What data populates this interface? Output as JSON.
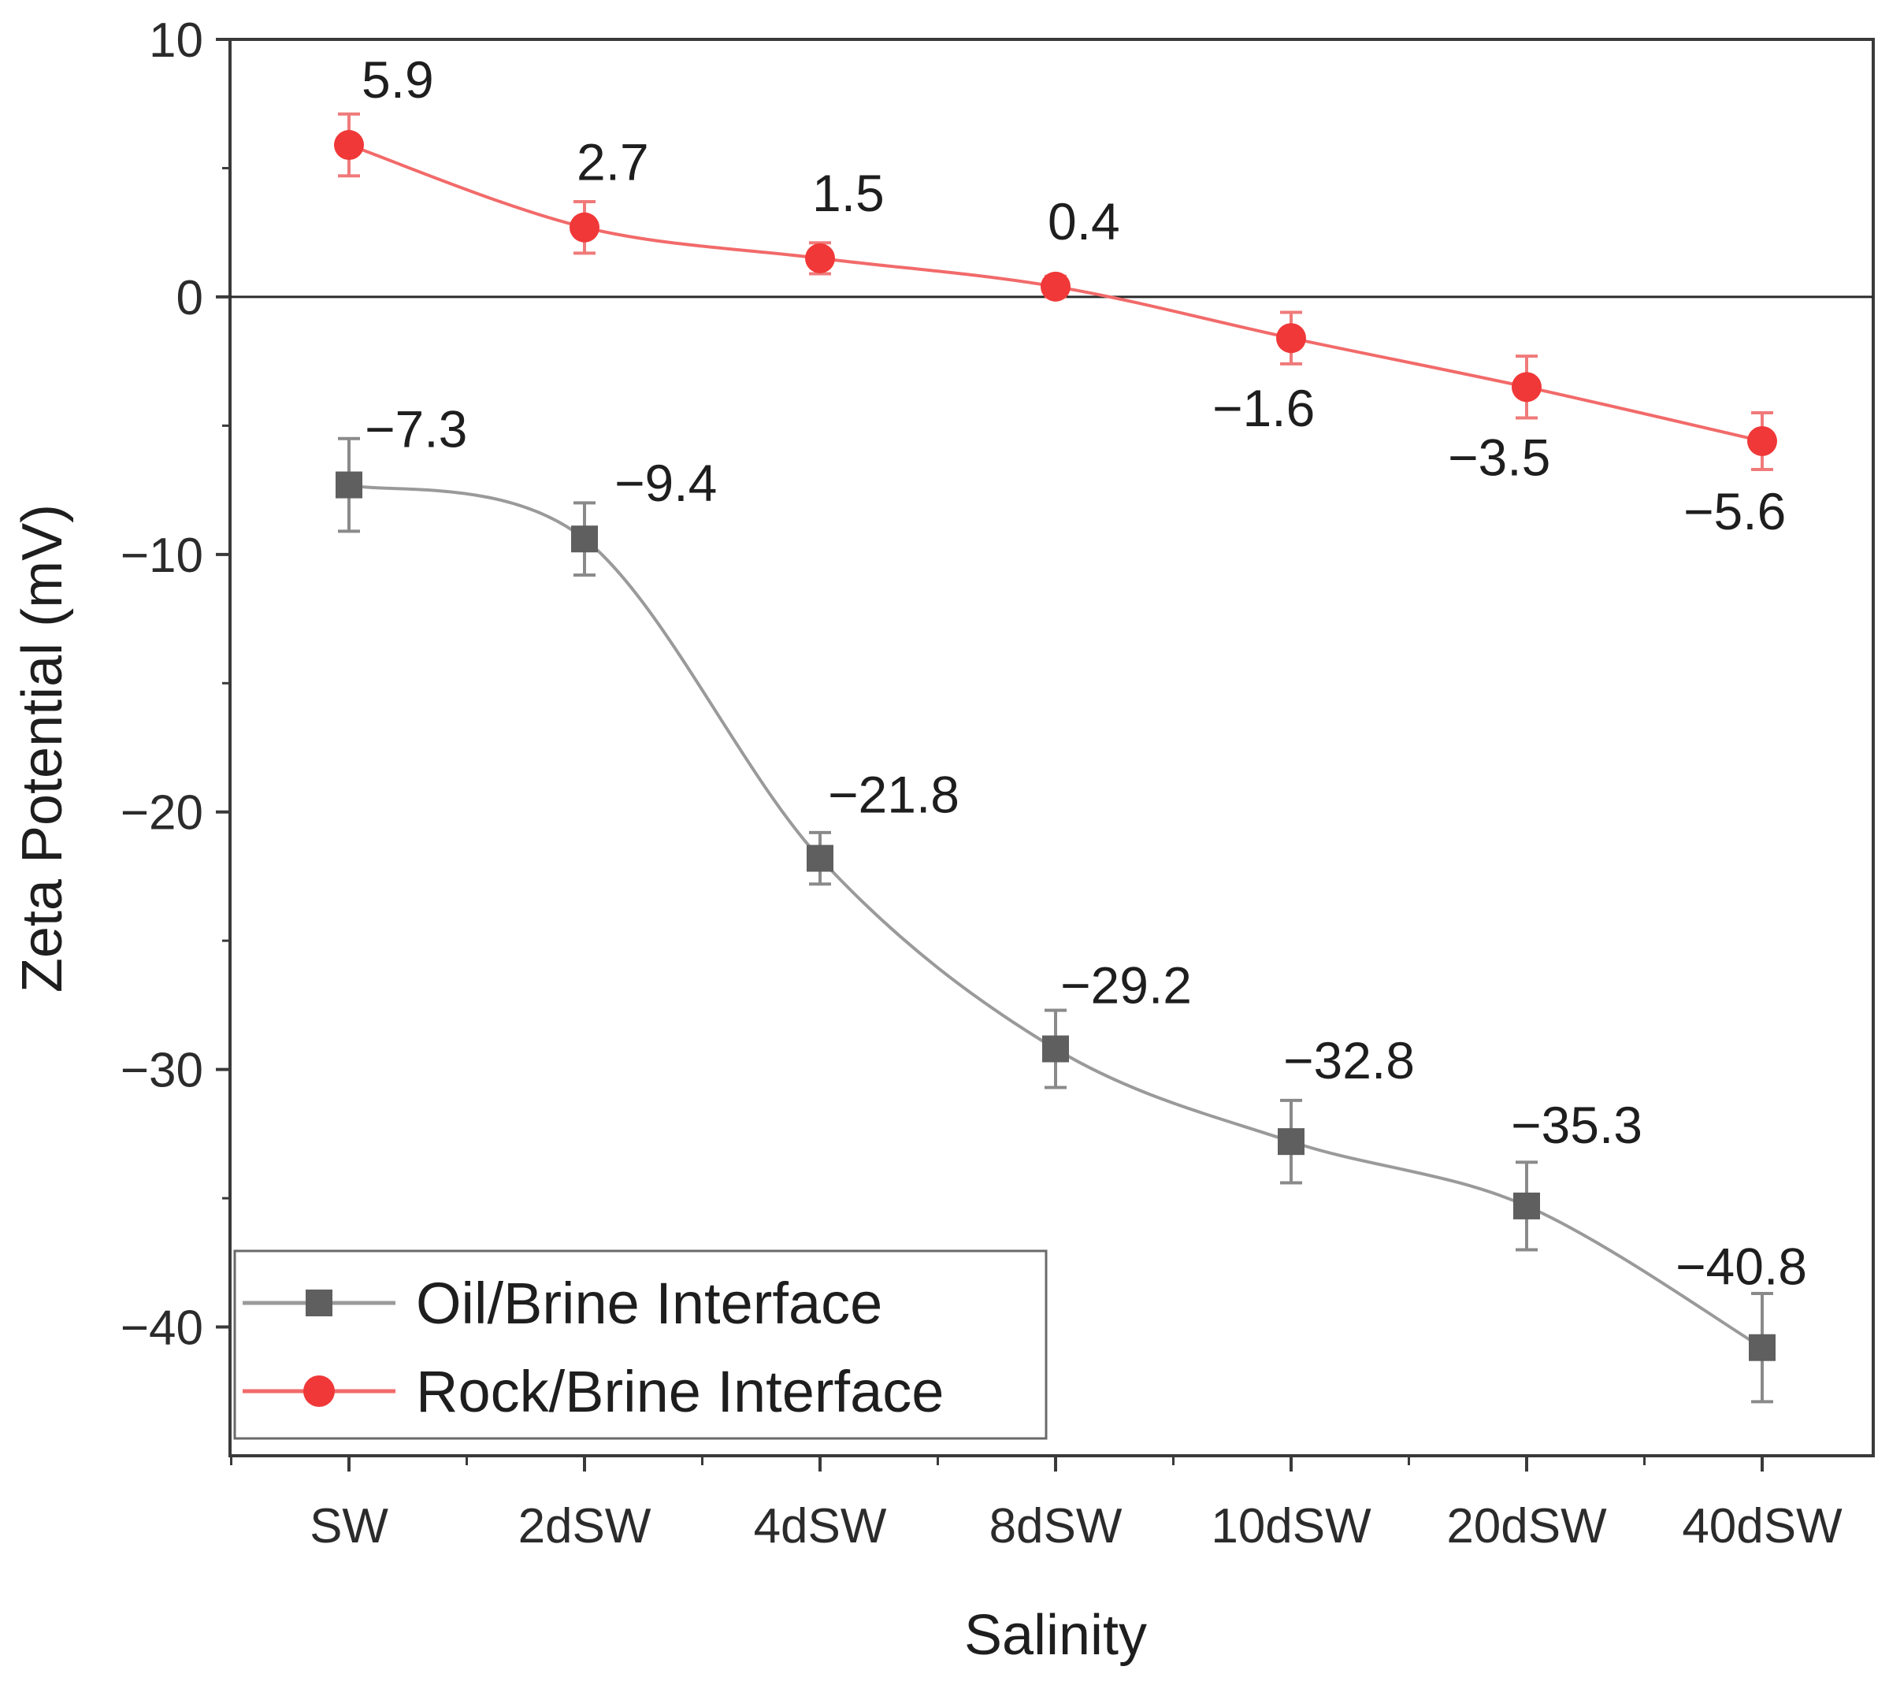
{
  "chart_data": {
    "type": "line",
    "title": "",
    "xlabel": "Salinity",
    "ylabel": "Zeta Potential (mV)",
    "categories": [
      "SW",
      "2dSW",
      "4dSW",
      "8dSW",
      "10dSW",
      "20dSW",
      "40dSW"
    ],
    "ylim": [
      -45,
      10
    ],
    "yticks": [
      10,
      0,
      -10,
      -20,
      -30,
      -40
    ],
    "ytick_labels": [
      "10",
      "0",
      "−10",
      "−20",
      "−30",
      "−40"
    ],
    "zero_line": true,
    "grid": false,
    "legend_position": "bottom-left",
    "series": [
      {
        "name": "Oil/Brine Interface",
        "marker": "square",
        "color": "#5f5f5f",
        "line_color": "#9a9a9a",
        "values": [
          -7.3,
          -9.4,
          -21.8,
          -29.2,
          -32.8,
          -35.3,
          -40.8
        ],
        "errors": [
          1.8,
          1.4,
          1.0,
          1.5,
          1.6,
          1.7,
          2.1
        ],
        "labels": [
          "−7.3",
          "−9.4",
          "−21.8",
          "−29.2",
          "−32.8",
          "−35.3",
          "−40.8"
        ]
      },
      {
        "name": "Rock/Brine Interface",
        "marker": "circle",
        "color": "#f03838",
        "line_color": "#f26a6a",
        "values": [
          5.9,
          2.7,
          1.5,
          0.4,
          -1.6,
          -3.5,
          -5.6
        ],
        "errors": [
          1.2,
          1.0,
          0.6,
          0.4,
          1.0,
          1.2,
          1.1
        ],
        "labels": [
          "5.9",
          "2.7",
          "1.5",
          "0.4",
          "−1.6",
          "−3.5",
          "−5.6"
        ]
      }
    ]
  }
}
